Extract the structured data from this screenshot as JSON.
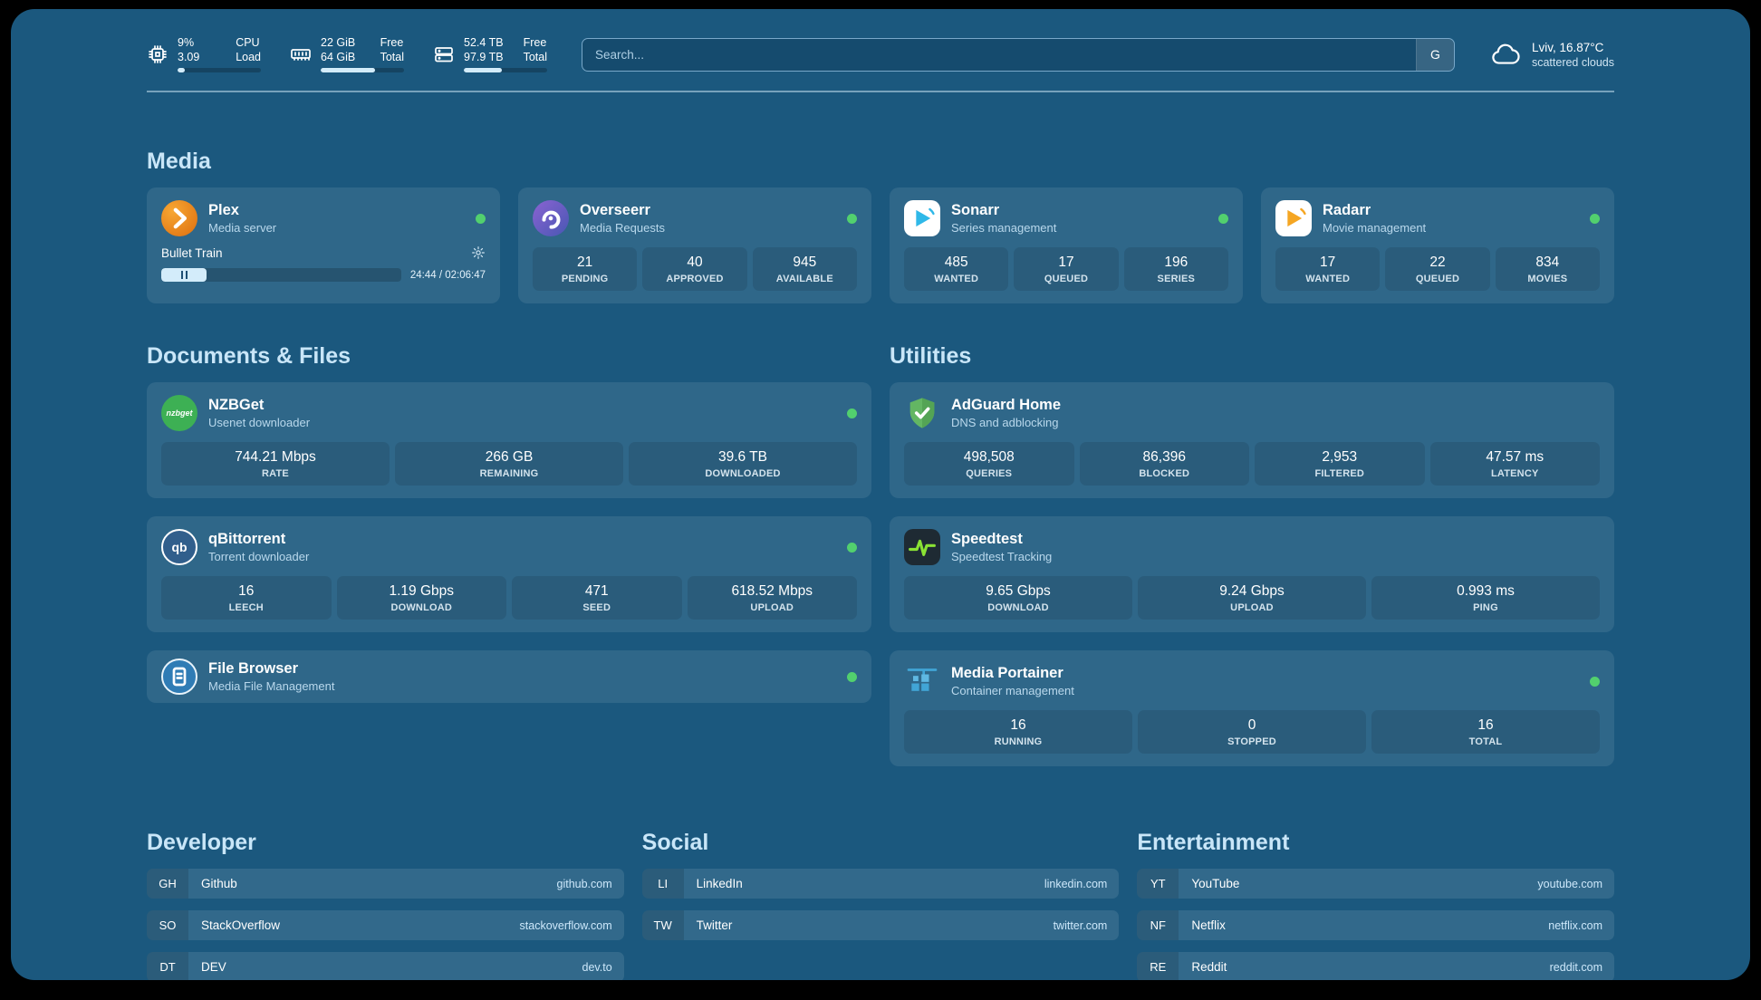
{
  "colors": {
    "background": "#1b587e",
    "heading": "#c9e6f8",
    "status_green": "#52d06e",
    "bar_fill": "#d3ecfa"
  },
  "topbar": {
    "cpu": {
      "percent": "9%",
      "load": "3.09",
      "label_top": "CPU",
      "label_bottom": "Load",
      "bar": 9
    },
    "memory": {
      "free": "22 GiB",
      "total": "64 GiB",
      "label_top": "Free",
      "label_bottom": "Total",
      "bar": 65
    },
    "disk": {
      "free": "52.4 TB",
      "total": "97.9 TB",
      "label_top": "Free",
      "label_bottom": "Total",
      "bar": 46
    },
    "search": {
      "placeholder": "Search...",
      "button": "G"
    },
    "weather": {
      "location": "Lviv, 16.87°C",
      "condition": "scattered clouds"
    }
  },
  "media": {
    "title": "Media",
    "plex": {
      "name": "Plex",
      "subtitle": "Media server",
      "now_playing": "Bullet Train",
      "time": "24:44 / 02:06:47",
      "progress": 19
    },
    "overseerr": {
      "name": "Overseerr",
      "subtitle": "Media Requests",
      "stats": [
        {
          "value": "21",
          "label": "PENDING"
        },
        {
          "value": "40",
          "label": "APPROVED"
        },
        {
          "value": "945",
          "label": "AVAILABLE"
        }
      ]
    },
    "sonarr": {
      "name": "Sonarr",
      "subtitle": "Series management",
      "stats": [
        {
          "value": "485",
          "label": "WANTED"
        },
        {
          "value": "17",
          "label": "QUEUED"
        },
        {
          "value": "196",
          "label": "SERIES"
        }
      ]
    },
    "radarr": {
      "name": "Radarr",
      "subtitle": "Movie management",
      "stats": [
        {
          "value": "17",
          "label": "WANTED"
        },
        {
          "value": "22",
          "label": "QUEUED"
        },
        {
          "value": "834",
          "label": "MOVIES"
        }
      ]
    }
  },
  "documents": {
    "title": "Documents & Files",
    "nzbget": {
      "name": "NZBGet",
      "subtitle": "Usenet downloader",
      "icon_text": "nzbget",
      "stats": [
        {
          "value": "744.21 Mbps",
          "label": "RATE"
        },
        {
          "value": "266 GB",
          "label": "REMAINING"
        },
        {
          "value": "39.6 TB",
          "label": "DOWNLOADED"
        }
      ]
    },
    "qbittorrent": {
      "name": "qBittorrent",
      "subtitle": "Torrent downloader",
      "icon_text": "qb",
      "stats": [
        {
          "value": "16",
          "label": "LEECH"
        },
        {
          "value": "1.19 Gbps",
          "label": "DOWNLOAD"
        },
        {
          "value": "471",
          "label": "SEED"
        },
        {
          "value": "618.52 Mbps",
          "label": "UPLOAD"
        }
      ]
    },
    "filebrowser": {
      "name": "File Browser",
      "subtitle": "Media File Management"
    }
  },
  "utilities": {
    "title": "Utilities",
    "adguard": {
      "name": "AdGuard Home",
      "subtitle": "DNS and adblocking",
      "stats": [
        {
          "value": "498,508",
          "label": "QUERIES"
        },
        {
          "value": "86,396",
          "label": "BLOCKED"
        },
        {
          "value": "2,953",
          "label": "FILTERED"
        },
        {
          "value": "47.57 ms",
          "label": "LATENCY"
        }
      ]
    },
    "speedtest": {
      "name": "Speedtest",
      "subtitle": "Speedtest Tracking",
      "stats": [
        {
          "value": "9.65 Gbps",
          "label": "DOWNLOAD"
        },
        {
          "value": "9.24 Gbps",
          "label": "UPLOAD"
        },
        {
          "value": "0.993 ms",
          "label": "PING"
        }
      ]
    },
    "portainer": {
      "name": "Media Portainer",
      "subtitle": "Container management",
      "stats": [
        {
          "value": "16",
          "label": "RUNNING"
        },
        {
          "value": "0",
          "label": "STOPPED"
        },
        {
          "value": "16",
          "label": "TOTAL"
        }
      ]
    }
  },
  "bookmarks": {
    "developer": {
      "title": "Developer",
      "items": [
        {
          "abbr": "GH",
          "name": "Github",
          "url": "github.com"
        },
        {
          "abbr": "SO",
          "name": "StackOverflow",
          "url": "stackoverflow.com"
        },
        {
          "abbr": "DT",
          "name": "DEV",
          "url": "dev.to"
        }
      ]
    },
    "social": {
      "title": "Social",
      "items": [
        {
          "abbr": "LI",
          "name": "LinkedIn",
          "url": "linkedin.com"
        },
        {
          "abbr": "TW",
          "name": "Twitter",
          "url": "twitter.com"
        }
      ]
    },
    "entertainment": {
      "title": "Entertainment",
      "items": [
        {
          "abbr": "YT",
          "name": "YouTube",
          "url": "youtube.com"
        },
        {
          "abbr": "NF",
          "name": "Netflix",
          "url": "netflix.com"
        },
        {
          "abbr": "RE",
          "name": "Reddit",
          "url": "reddit.com"
        }
      ]
    }
  }
}
